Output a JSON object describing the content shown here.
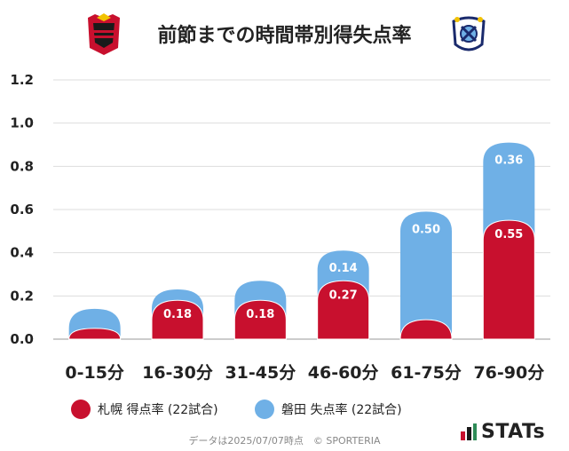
{
  "title": "前節までの時間帯別得失点率",
  "footer": "データは2025/07/07時点　© SPORTERIA",
  "brand": "STATs",
  "colors": {
    "sapporo": "#c8102e",
    "iwata": "#6fb0e6",
    "grid": "#dddddd"
  },
  "legend": [
    {
      "label": "札幌 得点率 (22試合)",
      "color": "#c8102e"
    },
    {
      "label": "磐田 失点率 (22試合)",
      "color": "#6fb0e6"
    }
  ],
  "chart_data": {
    "type": "bar",
    "stacked": true,
    "categories": [
      "0-15分",
      "16-30分",
      "31-45分",
      "46-60分",
      "61-75分",
      "76-90分"
    ],
    "series": [
      {
        "name": "札幌 得点率 (22試合)",
        "values": [
          0.05,
          0.18,
          0.18,
          0.27,
          0.09,
          0.55
        ],
        "labels": [
          "",
          "0.18",
          "0.18",
          "0.27",
          "",
          "0.55"
        ]
      },
      {
        "name": "磐田 失点率 (22試合)",
        "values": [
          0.09,
          0.05,
          0.09,
          0.14,
          0.5,
          0.36
        ],
        "labels": [
          "",
          "",
          "",
          "0.14",
          "0.50",
          "0.36"
        ]
      }
    ],
    "ylim": [
      0,
      1.2
    ],
    "yticks": [
      "0.0",
      "0.2",
      "0.4",
      "0.6",
      "0.8",
      "1.0",
      "1.2"
    ],
    "grid": true,
    "legend_position": "bottom"
  }
}
